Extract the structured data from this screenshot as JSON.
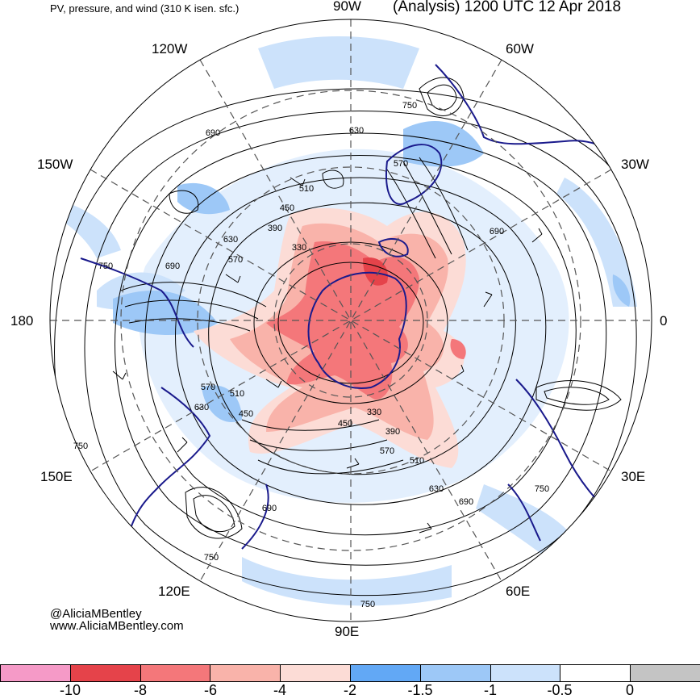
{
  "header": {
    "left_title": "PV, pressure, and wind (310 K isen. sfc.)",
    "right_title": "(Analysis) 1200 UTC 12 Apr 2018"
  },
  "map": {
    "projection": "polar stereographic (north pole centered)",
    "longitude_labels": [
      "90W",
      "60W",
      "30W",
      "0",
      "30E",
      "60E",
      "90E",
      "120E",
      "150E",
      "180",
      "150W",
      "120W"
    ],
    "contour_labels": [
      "750",
      "630",
      "570",
      "510",
      "690",
      "690",
      "630",
      "570",
      "750",
      "690",
      "450",
      "390",
      "330",
      "330",
      "450",
      "390",
      "570",
      "510",
      "630",
      "690",
      "570",
      "630",
      "510",
      "450",
      "750",
      "690",
      "750",
      "750",
      "750"
    ]
  },
  "credits": {
    "handle": "@AliciaMBentley",
    "website": "www.AliciaMBentley.com"
  },
  "colorbar": {
    "colors": [
      "#f59ac7",
      "#e5434a",
      "#f4777a",
      "#f9b3aa",
      "#fcdcd6",
      "#62a8f5",
      "#9dc8f7",
      "#cce2fb",
      "#ffffff",
      "#c4c4c4"
    ],
    "tick_labels": [
      "-10",
      "-8",
      "-6",
      "-4",
      "-2",
      "-1.5",
      "-1",
      "-0.5",
      "0"
    ]
  }
}
